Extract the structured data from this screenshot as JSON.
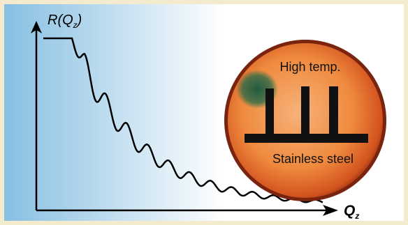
{
  "y_label": {
    "main": "R(Q",
    "sub": "z",
    "end": ")"
  },
  "x_label": {
    "main": "Q",
    "sub": "z"
  },
  "photo": {
    "top_label": "High temp.",
    "bottom_label": "Stainless steel"
  }
}
